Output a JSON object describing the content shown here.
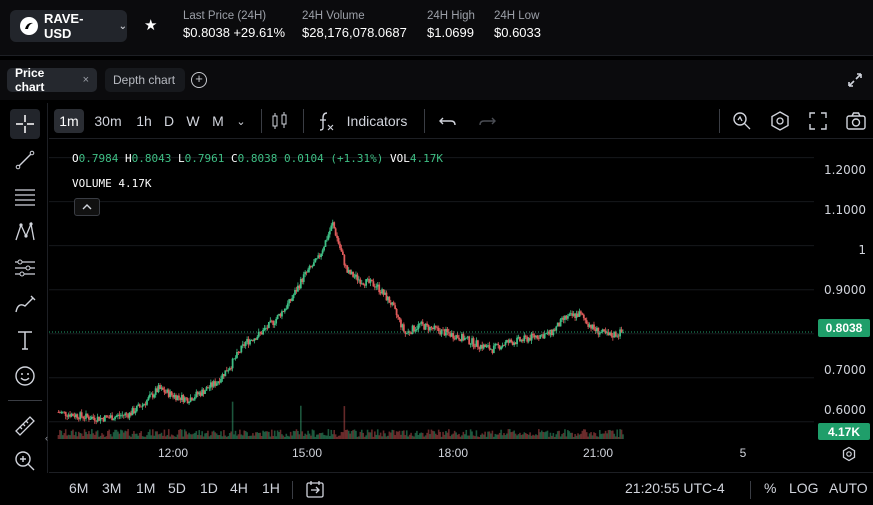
{
  "market": {
    "pair": "RAVE-USD",
    "last_price_label": "Last Price (24H)",
    "last_price": "$0.8038",
    "change": "+29.61%",
    "volume_label": "24H Volume",
    "volume": "$28,176,078.0687",
    "high_label": "24H High",
    "high": "$1.0699",
    "low_label": "24H Low",
    "low": "$0.6033"
  },
  "tabs": {
    "price_chart": "Price chart",
    "close": "×",
    "depth_chart": "Depth chart",
    "add": "+"
  },
  "toolbar": {
    "timeframes": [
      "1m",
      "30m",
      "1h",
      "D",
      "W",
      "M"
    ],
    "selected_timeframe": "1m",
    "indicators": "Indicators"
  },
  "legend": {
    "o_label": "O",
    "o": "0.7984",
    "h_label": "H",
    "h": "0.8043",
    "l_label": "L",
    "l": "0.7961",
    "c_label": "C",
    "c": "0.8038",
    "change": "0.0104 (+1.31%)",
    "vol_label": "VOL",
    "vol": "4.17K",
    "volume_label": "VOLUME",
    "volume": "4.17K"
  },
  "price_axis": {
    "labels": [
      "1.2000",
      "1.1000",
      "1",
      "0.9000",
      "0.8000",
      "0.7000",
      "0.6000"
    ],
    "current": "0.8038",
    "current_volume": "4.17K"
  },
  "time_axis": {
    "labels": [
      "12:00",
      "15:00",
      "18:00",
      "21:00",
      "5"
    ]
  },
  "bottom": {
    "ranges": [
      "6M",
      "3M",
      "1M",
      "5D",
      "1D",
      "4H",
      "1H"
    ],
    "clock": "21:20:55 UTC-4",
    "percent": "%",
    "log": "LOG",
    "auto": "AUTO"
  },
  "colors": {
    "up": "#3fbf85",
    "down": "#e05b5b",
    "accent": "#1f9e6a"
  },
  "chart_data": {
    "type": "line",
    "title": "",
    "xlabel": "",
    "ylabel": "",
    "ylim": [
      0.57,
      1.24
    ],
    "x": [
      "09:45",
      "10:30",
      "11:00",
      "11:30",
      "12:00",
      "12:30",
      "13:00",
      "13:30",
      "13:45",
      "14:00",
      "14:15",
      "14:30",
      "14:45",
      "15:00",
      "15:15",
      "15:30",
      "15:45",
      "16:00",
      "16:10",
      "16:20",
      "16:30",
      "16:45",
      "17:00",
      "17:15",
      "17:20",
      "17:30",
      "17:45",
      "18:00",
      "18:30",
      "19:00",
      "19:15",
      "19:30",
      "19:45",
      "20:00",
      "20:15",
      "20:30",
      "20:45",
      "21:00",
      "21:10",
      "21:20"
    ],
    "series": [
      {
        "values": [
          0.622,
          0.617,
          0.611,
          0.608,
          0.612,
          0.618,
          0.642,
          0.675,
          0.66,
          0.651,
          0.668,
          0.69,
          0.73,
          0.78,
          0.8,
          0.83,
          0.87,
          0.93,
          0.97,
          1.05,
          0.94,
          0.92,
          0.91,
          0.87,
          0.8,
          0.82,
          0.81,
          0.8,
          0.79,
          0.775,
          0.765,
          0.78,
          0.785,
          0.795,
          0.8,
          0.835,
          0.845,
          0.81,
          0.795,
          0.8038
        ]
      }
    ]
  }
}
